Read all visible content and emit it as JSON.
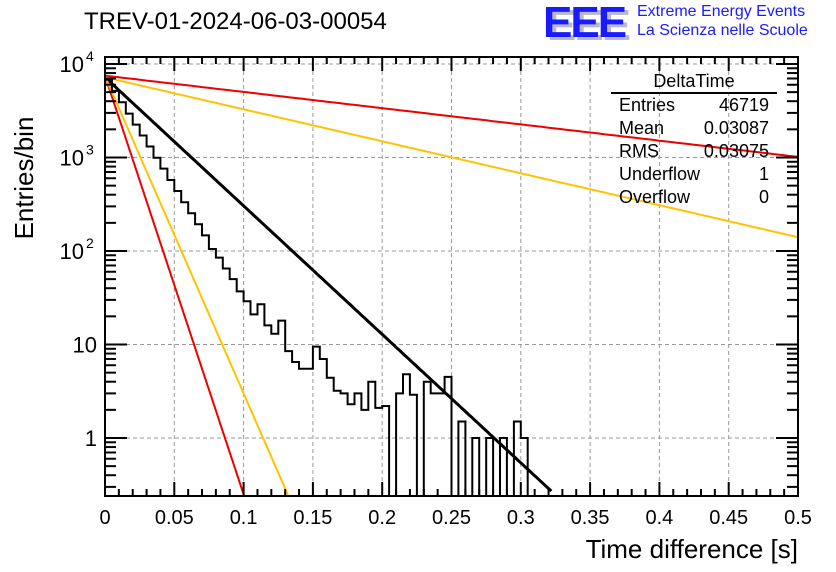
{
  "title": "TREV-01-2024-06-03-00054",
  "logo": {
    "mark": "EEE",
    "line1": "Extreme Energy Events",
    "line2": "La Scienza nelle Scuole",
    "color": "#1a1aff"
  },
  "stats_box": {
    "name": "DeltaTime",
    "rows": [
      {
        "label": "Entries",
        "value": "46719"
      },
      {
        "label": "Mean",
        "value": "0.03087"
      },
      {
        "label": "RMS",
        "value": "0.03075"
      },
      {
        "label": "Underflow",
        "value": "1"
      },
      {
        "label": "Overflow",
        "value": "0"
      }
    ]
  },
  "chart_data": {
    "type": "histogram-with-fits",
    "title": "TREV-01-2024-06-03-00054",
    "xlabel": "Time difference [s]",
    "ylabel": "Entries/bin",
    "xlim": [
      0,
      0.5
    ],
    "ylim": [
      0.25,
      11000
    ],
    "yscale": "log",
    "grid": true,
    "x_ticks": [
      "0",
      "0.05",
      "0.1",
      "0.15",
      "0.2",
      "0.25",
      "0.3",
      "0.35",
      "0.4",
      "0.45",
      "0.5"
    ],
    "x_tick_values": [
      0,
      0.05,
      0.1,
      0.15,
      0.2,
      0.25,
      0.3,
      0.35,
      0.4,
      0.45,
      0.5
    ],
    "y_ticks": [
      {
        "value": 10000,
        "base": "10",
        "exp": "4"
      },
      {
        "value": 1000,
        "base": "10",
        "exp": "3"
      },
      {
        "value": 100,
        "base": "10",
        "exp": "2"
      },
      {
        "value": 10,
        "base": "10",
        "exp": ""
      },
      {
        "value": 1,
        "base": "1",
        "exp": ""
      }
    ],
    "histogram": {
      "name": "DeltaTime",
      "bin_width": 0.005,
      "bin_start": 0,
      "color": "#000000",
      "values": [
        6800,
        5150,
        3900,
        2950,
        2250,
        1720,
        1310,
        995,
        760,
        575,
        438,
        333,
        253,
        193,
        147,
        105,
        85,
        65,
        50,
        37,
        29,
        21,
        27,
        16,
        13,
        18,
        8.5,
        6.5,
        5.5,
        5.5,
        9.5,
        7.0,
        4.4,
        3.2,
        3.0,
        2.3,
        3.0,
        2.0,
        4.0,
        2.1,
        2.2,
        0.2,
        3.0,
        4.8,
        2.9,
        0.2,
        4.0,
        3.0,
        3.0,
        4.5,
        0.2,
        1.5,
        0.2,
        1.0,
        0.2,
        1.0,
        0.2,
        1.0,
        0.2,
        1.5,
        1.0,
        0.2,
        0,
        0,
        0,
        0,
        0,
        0,
        0,
        0,
        0,
        0,
        0,
        0,
        0,
        0,
        0,
        0,
        0,
        0,
        0,
        0,
        0,
        0,
        0,
        0,
        0,
        0,
        0,
        0,
        0,
        0,
        0,
        0,
        0,
        0,
        0,
        0,
        0
      ]
    },
    "series": [
      {
        "name": "fit",
        "color": "#000000",
        "type": "exp",
        "A": 7200,
        "tau": 0.0316,
        "x_range": [
          0,
          0.322
        ]
      },
      {
        "name": "red-steep",
        "color": "#ee0000",
        "type": "exp",
        "A": 7500,
        "tau": 0.0097,
        "x_range": [
          0,
          0.1045
        ]
      },
      {
        "name": "yellow-steep",
        "color": "#ffc400",
        "type": "exp",
        "A": 7400,
        "tau": 0.0128,
        "x_range": [
          0,
          0.132
        ]
      },
      {
        "name": "red-shallow",
        "color": "#ee0000",
        "type": "exp",
        "A": 7500,
        "tau": 0.25,
        "x_range": [
          0,
          0.5
        ]
      },
      {
        "name": "yellow-shallow",
        "color": "#ffc400",
        "type": "exp",
        "A": 7200,
        "tau": 0.127,
        "x_range": [
          0,
          0.5
        ]
      }
    ]
  }
}
